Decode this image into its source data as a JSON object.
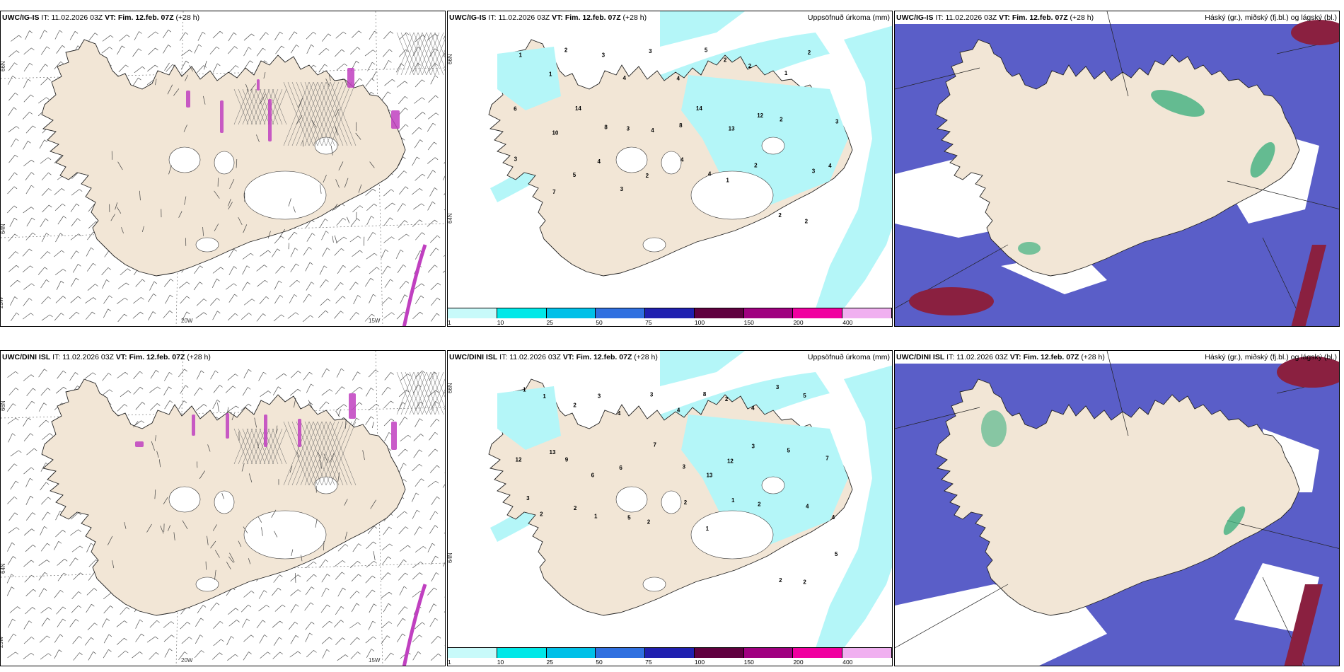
{
  "rows": [
    {
      "model": "UWC/IG-IS",
      "it_label": "IT:",
      "it_value": "11.02.2026 03Z",
      "vt_label": "VT:",
      "vt_value": "Fim. 12.feb. 07Z",
      "lead": "(+28 h)"
    },
    {
      "model": "UWC/DINI ISL",
      "it_label": "IT:",
      "it_value": "11.02.2026 03Z",
      "vt_label": "VT:",
      "vt_value": "Fim. 12.feb. 07Z",
      "lead": "(+28 h)"
    }
  ],
  "panels": {
    "precip_title": "Uppsöfnuð úrkoma (mm)",
    "cloud_title": "Háský (gr.), miðský (fj.bl.) og lágský (bl.)"
  },
  "axis_labels": {
    "lat66": "66N",
    "lat64": "64N",
    "lon25": "25W",
    "lon20": "20W",
    "lon15": "15W"
  },
  "colorbar": {
    "ticks": [
      "1",
      "10",
      "25",
      "50",
      "75",
      "100",
      "150",
      "200",
      "400"
    ],
    "colors": [
      "#c8fafa",
      "#00e8e8",
      "#00c0e8",
      "#3070e0",
      "#2020b0",
      "#600040",
      "#a00080",
      "#f000a0",
      "#f0b0f0"
    ]
  },
  "colors": {
    "land": "#f2e6d6",
    "precip_light": "#b4f6f8",
    "cloud_high": "#5a5ec8",
    "cloud_mid": "#3040a0",
    "cloud_low_red": "#8a2040",
    "cloud_green": "#40b080",
    "wind_barb": "#555555",
    "snow_purple": "#c040c0"
  },
  "precip_numbers_top": [
    "1",
    "1",
    "2",
    "3",
    "4",
    "3",
    "4",
    "5",
    "2",
    "2",
    "1",
    "2",
    "3",
    "6",
    "10",
    "14",
    "8",
    "3",
    "4",
    "8",
    "14",
    "13",
    "12",
    "2",
    "3",
    "4",
    "3",
    "7",
    "5",
    "4",
    "3",
    "2",
    "4",
    "4",
    "1",
    "2",
    "2",
    "2"
  ],
  "precip_numbers_bottom": [
    "1",
    "1",
    "2",
    "3",
    "4",
    "3",
    "4",
    "8",
    "2",
    "4",
    "3",
    "5",
    "7",
    "12",
    "13",
    "9",
    "6",
    "6",
    "7",
    "3",
    "13",
    "12",
    "3",
    "5",
    "4",
    "4",
    "3",
    "2",
    "2",
    "1",
    "5",
    "2",
    "2",
    "1",
    "1",
    "2",
    "2",
    "2",
    "5"
  ]
}
